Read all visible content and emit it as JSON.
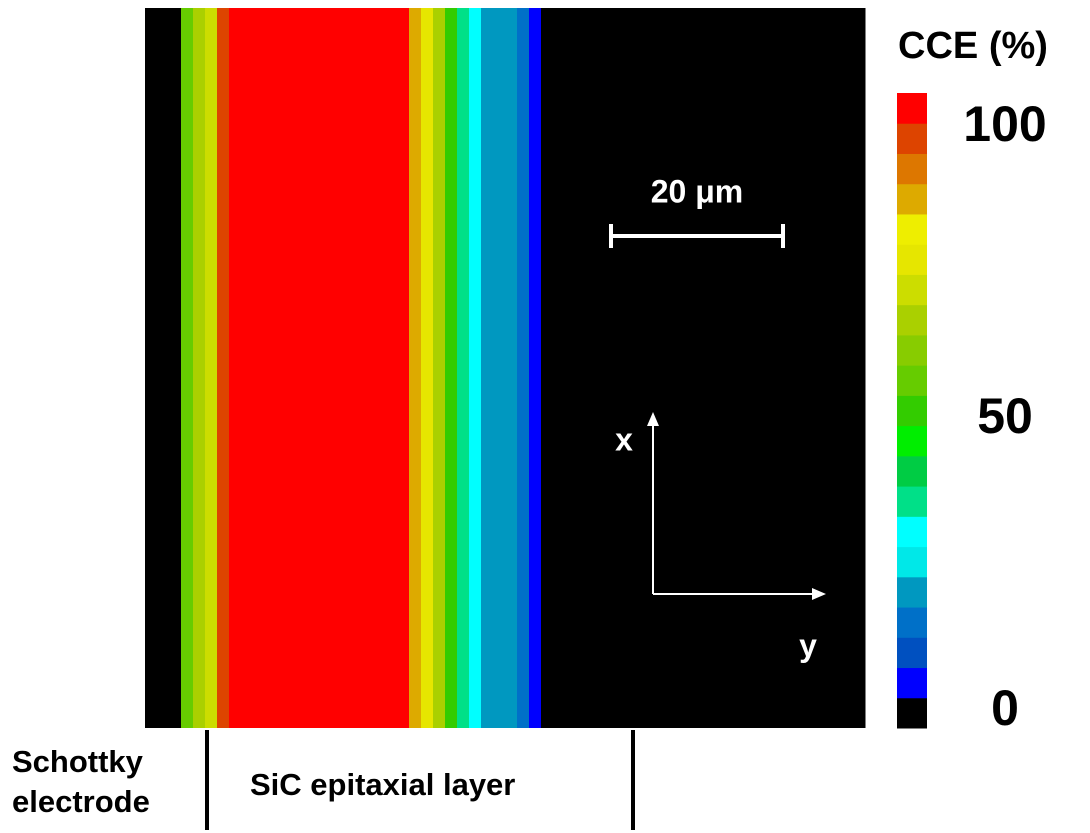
{
  "chart_data": {
    "type": "heatmap",
    "colorbar_title": "CCE (%)",
    "vlim": [
      0,
      100
    ],
    "colorbar_ticks": [
      0,
      50,
      100
    ],
    "colors": [
      "#000000",
      "#0000ff",
      "#0050c0",
      "#0070c8",
      "#0098c0",
      "#00e8e8",
      "#00ffff",
      "#00e088",
      "#00cc44",
      "#00ee00",
      "#33cc00",
      "#66cc00",
      "#88cc00",
      "#aad000",
      "#ccdd00",
      "#e6e600",
      "#eeee00",
      "#ddaa00",
      "#dd7700",
      "#dd4400",
      "#ff0000"
    ],
    "values": [
      0,
      0,
      0,
      55,
      65,
      70,
      95,
      100,
      100,
      100,
      100,
      100,
      100,
      100,
      100,
      100,
      100,
      100,
      100,
      100,
      100,
      100,
      85,
      75,
      65,
      50,
      35,
      28,
      22,
      20,
      18,
      15,
      5,
      0,
      0,
      0,
      0,
      0,
      0,
      0,
      0,
      0,
      0,
      0,
      0,
      0,
      0,
      0,
      0,
      0,
      0,
      0,
      0,
      0,
      0,
      0,
      0,
      0,
      0,
      0
    ],
    "scale_bar": "20 μm",
    "axis_labels": {
      "x": "x",
      "y": "y"
    },
    "annotations": [
      "Schottky electrode",
      "SiC epitaxial layer"
    ]
  }
}
